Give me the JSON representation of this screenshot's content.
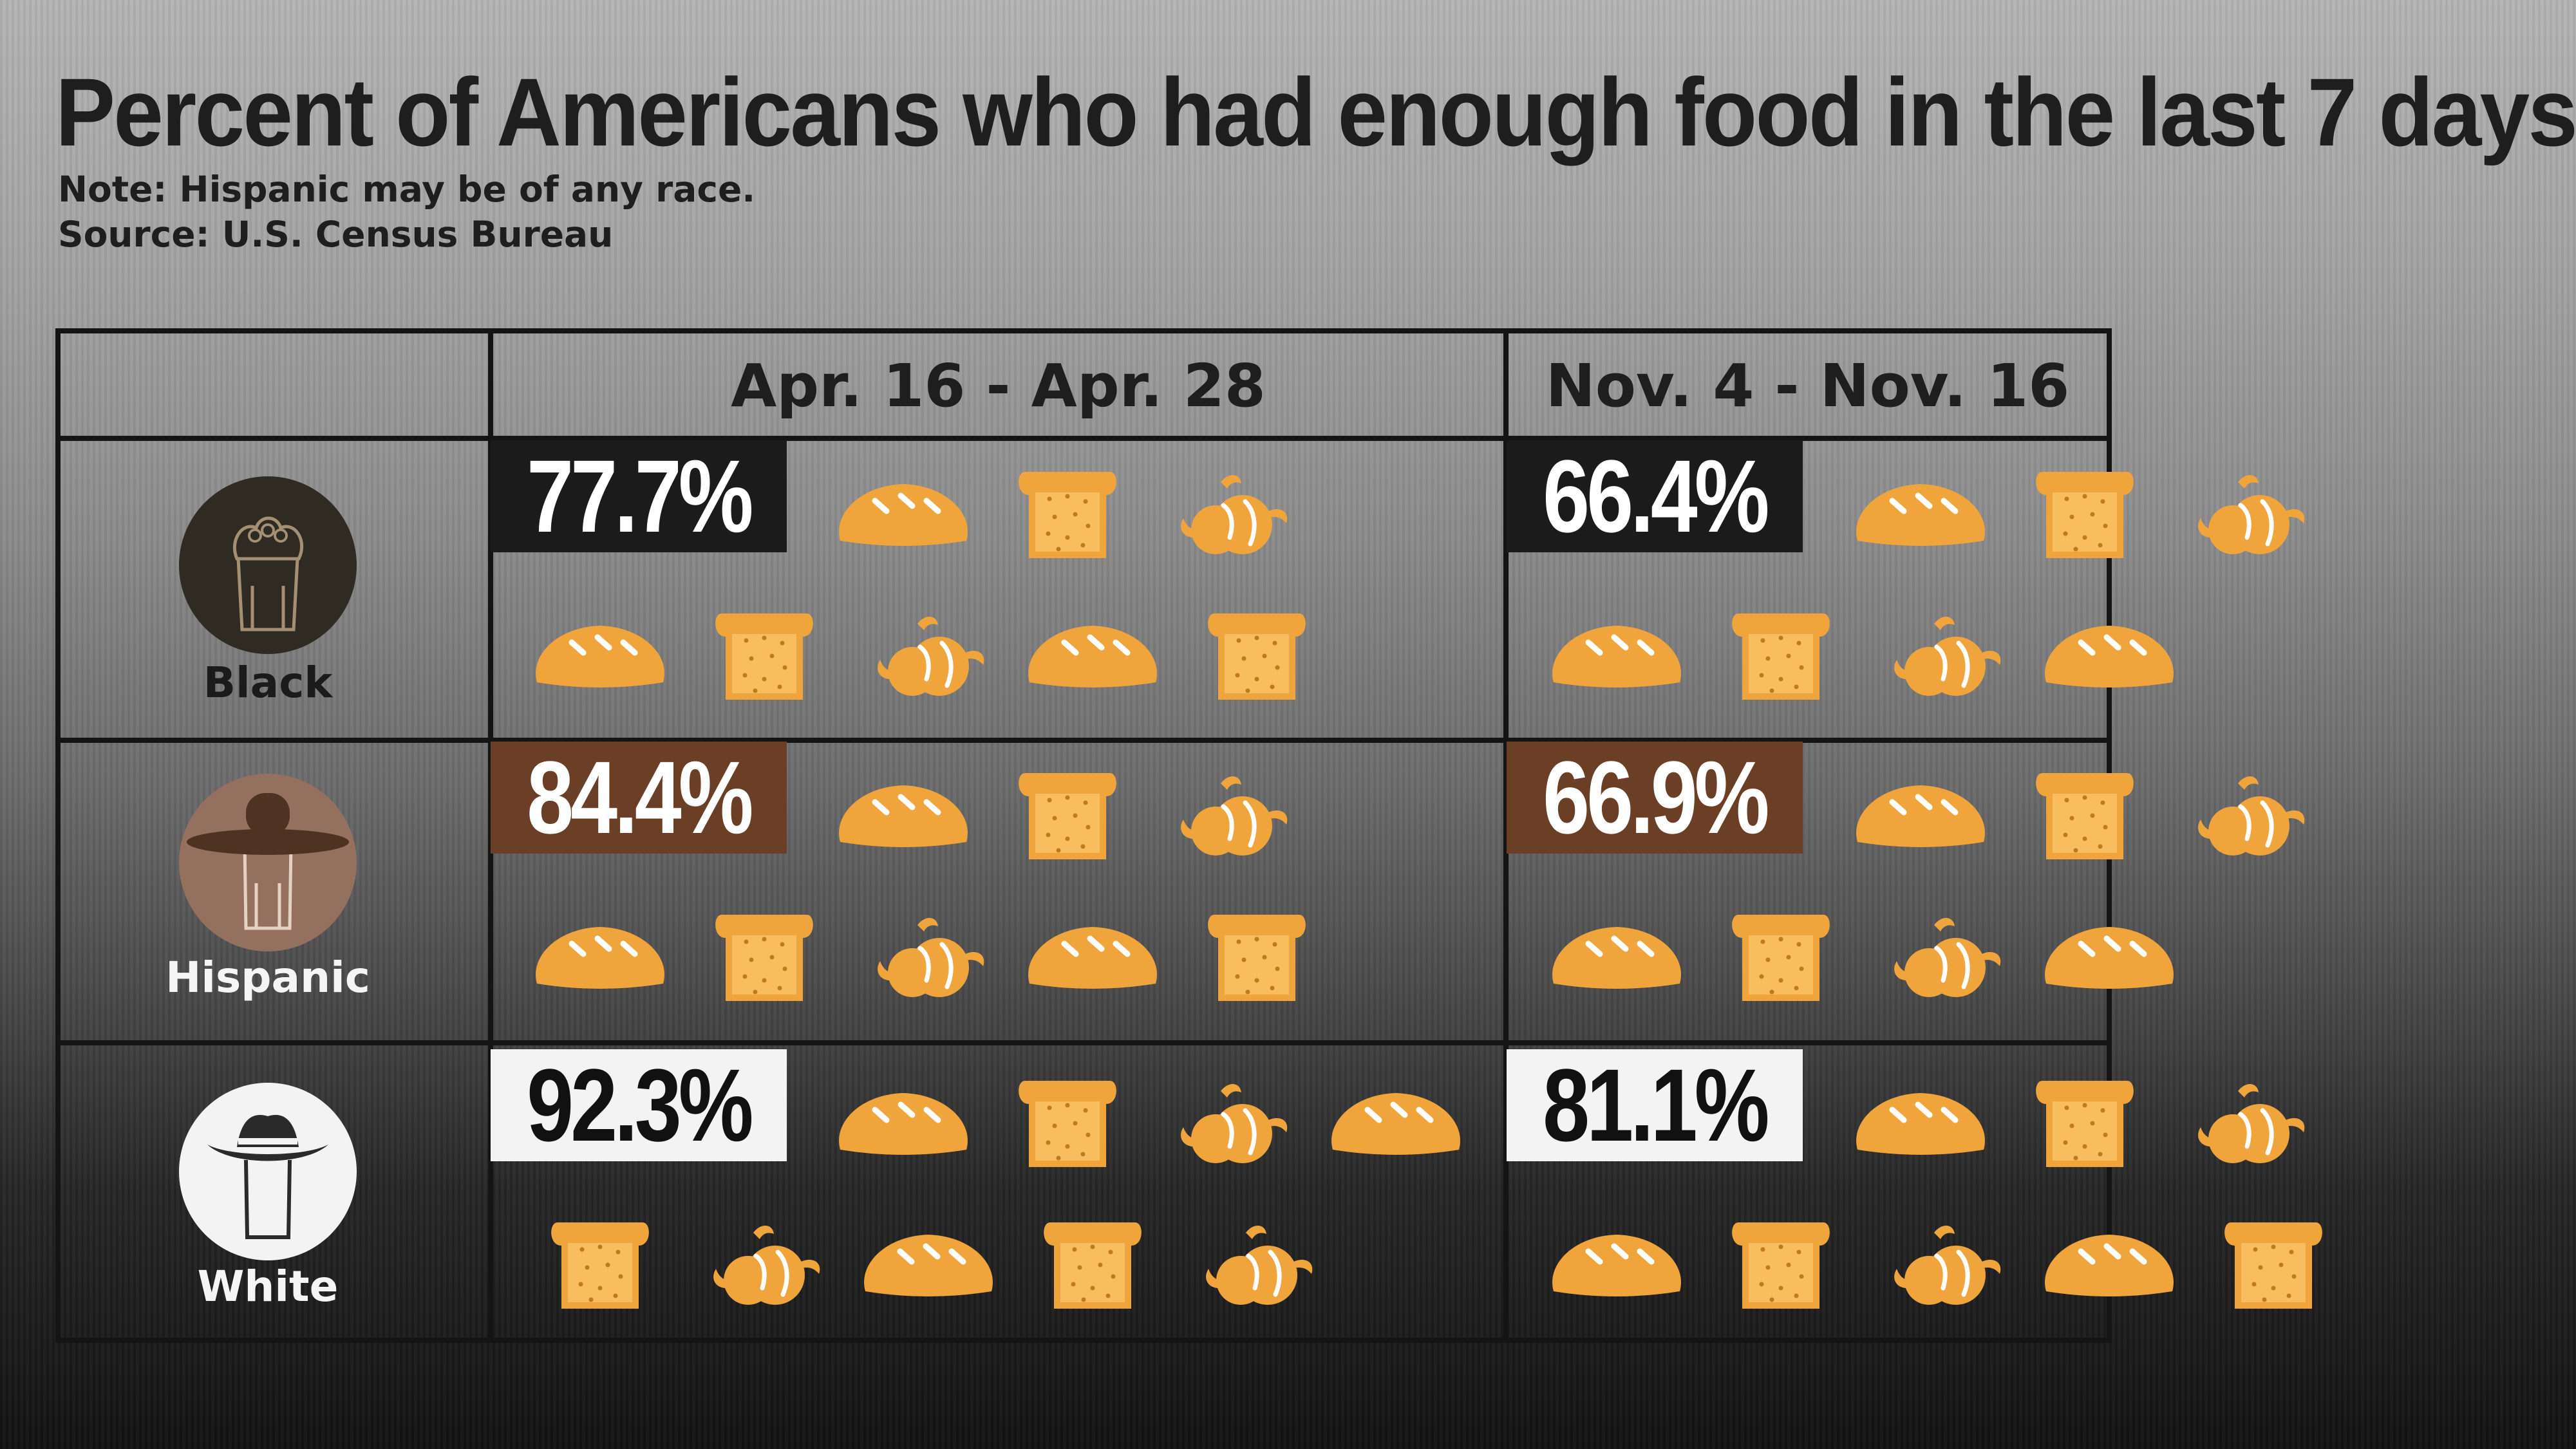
{
  "title": "Percent of Americans who had enough food in the last 7 days",
  "notes": [
    "Note: Hispanic may be of any race.",
    "Source: U.S. Census Bureau"
  ],
  "colors": {
    "food": "#f0a43c",
    "black_box": "#1b1b1b",
    "hispanic_box": "#6b3f26",
    "white_box": "#f3f3f3",
    "black_icon": "#2f2a22",
    "hispanic_icon": "#94705f",
    "white_icon": "#f3f3f3"
  },
  "chart_data": {
    "type": "table",
    "title": "Percent of Americans who had enough food in the last 7 days",
    "columns": [
      "Apr. 16 - Apr. 28",
      "Nov. 4 - Nov. 16"
    ],
    "rows": [
      {
        "group": "Black",
        "values": [
          "77.7%",
          "66.4%"
        ],
        "food_icons": [
          8,
          7
        ]
      },
      {
        "group": "Hispanic",
        "values": [
          "84.4%",
          "66.9%"
        ],
        "food_icons": [
          8,
          7
        ]
      },
      {
        "group": "White",
        "values": [
          "92.3%",
          "81.1%"
        ],
        "food_icons": [
          9,
          8
        ]
      }
    ],
    "icon_sequence": [
      "bread-loaf-icon",
      "toast-slice-icon",
      "croissant-icon"
    ]
  }
}
